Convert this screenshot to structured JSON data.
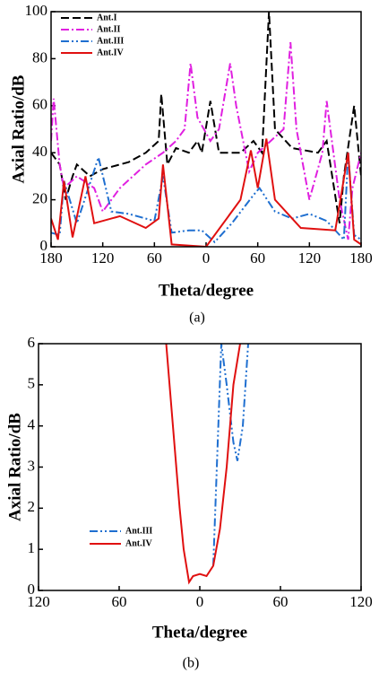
{
  "chart_data": [
    {
      "type": "line",
      "xlabel": "Theta/degree",
      "ylabel": "Axial Ratio/dB",
      "caption": "(a)",
      "xlim": [
        -180,
        180
      ],
      "ylim": [
        0,
        100
      ],
      "xticks": [
        {
          "value": -180,
          "label": "180"
        },
        {
          "value": -120,
          "label": "120"
        },
        {
          "value": -60,
          "label": "60"
        },
        0,
        {
          "value": 60,
          "label": "60"
        },
        120,
        180
      ],
      "yticks": [
        0,
        20,
        40,
        60,
        80,
        100
      ],
      "legend": "upper left",
      "series": [
        {
          "name": "Ant.I",
          "color": "#000000",
          "dash": "dashed",
          "x": [
            -180,
            -170,
            -163,
            -155,
            -150,
            -135,
            -120,
            -90,
            -70,
            -55,
            -52,
            -45,
            -35,
            -20,
            -10,
            -5,
            5,
            15,
            40,
            55,
            65,
            73,
            80,
            100,
            130,
            140,
            155,
            160,
            172,
            180
          ],
          "values": [
            40,
            35,
            20,
            30,
            35,
            30,
            33,
            36,
            40,
            45,
            65,
            35,
            42,
            40,
            45,
            40,
            62,
            40,
            40,
            45,
            40,
            100,
            50,
            42,
            40,
            45,
            10,
            30,
            60,
            30
          ]
        },
        {
          "name": "Ant.II",
          "color": "#e020e0",
          "dash": "dashdot",
          "x": [
            -180,
            -177,
            -170,
            -165,
            -150,
            -130,
            -120,
            -100,
            -70,
            -50,
            -35,
            -25,
            -18,
            -10,
            5,
            15,
            28,
            35,
            50,
            60,
            75,
            90,
            98,
            105,
            120,
            135,
            140,
            155,
            165,
            170,
            180
          ],
          "values": [
            45,
            63,
            35,
            25,
            30,
            25,
            15,
            25,
            35,
            40,
            45,
            50,
            78,
            55,
            45,
            50,
            78,
            60,
            32,
            40,
            45,
            50,
            87,
            50,
            20,
            40,
            62,
            20,
            3,
            25,
            40
          ]
        },
        {
          "name": "Ant.III",
          "color": "#1f6fd0",
          "dash": "dashdotdot",
          "x": [
            -180,
            -170,
            -165,
            -150,
            -125,
            -110,
            -90,
            -60,
            -50,
            -40,
            -20,
            -5,
            10,
            30,
            55,
            62,
            80,
            100,
            120,
            140,
            160,
            165,
            172,
            180
          ],
          "values": [
            6,
            5,
            28,
            10,
            38,
            15,
            14,
            11,
            30,
            6,
            7,
            7,
            2,
            10,
            22,
            25,
            15,
            12,
            14,
            11,
            3,
            40,
            5,
            3
          ]
        },
        {
          "name": "Ant.IV",
          "color": "#e01010",
          "dash": "solid",
          "x": [
            -180,
            -172,
            -165,
            -155,
            -140,
            -130,
            -100,
            -70,
            -55,
            -50,
            -40,
            0,
            40,
            52,
            60,
            70,
            80,
            110,
            150,
            165,
            172,
            180
          ],
          "values": [
            12,
            3,
            28,
            4,
            30,
            10,
            13,
            8,
            12,
            35,
            1,
            0,
            20,
            41,
            25,
            46,
            20,
            8,
            7,
            40,
            3,
            1
          ]
        }
      ]
    },
    {
      "type": "line",
      "xlabel": "Theta/degree",
      "ylabel": "Axial Ratio/dB",
      "caption": "(b)",
      "xlim": [
        -120,
        120
      ],
      "ylim": [
        0,
        6
      ],
      "xticks": [
        {
          "value": -120,
          "label": "120"
        },
        {
          "value": -60,
          "label": "60"
        },
        0,
        60,
        120
      ],
      "yticks": [
        0,
        1,
        2,
        3,
        4,
        5,
        6
      ],
      "legend": "lower left",
      "series": [
        {
          "name": "Ant.III",
          "color": "#1f6fd0",
          "dash": "dashdotdot",
          "x": [
            10,
            16,
            20,
            25,
            28,
            32,
            35,
            36
          ],
          "values": [
            0.6,
            6,
            5,
            3.6,
            3.15,
            4,
            5.5,
            6
          ]
        },
        {
          "name": "Ant.IV",
          "color": "#e01010",
          "dash": "solid",
          "x": [
            -25,
            -20,
            -15,
            -12,
            -8,
            -5,
            0,
            5,
            10,
            15,
            20,
            25,
            30
          ],
          "values": [
            6,
            4,
            2,
            1,
            0.2,
            0.35,
            0.4,
            0.35,
            0.6,
            1.5,
            3,
            5,
            6
          ]
        }
      ]
    }
  ]
}
